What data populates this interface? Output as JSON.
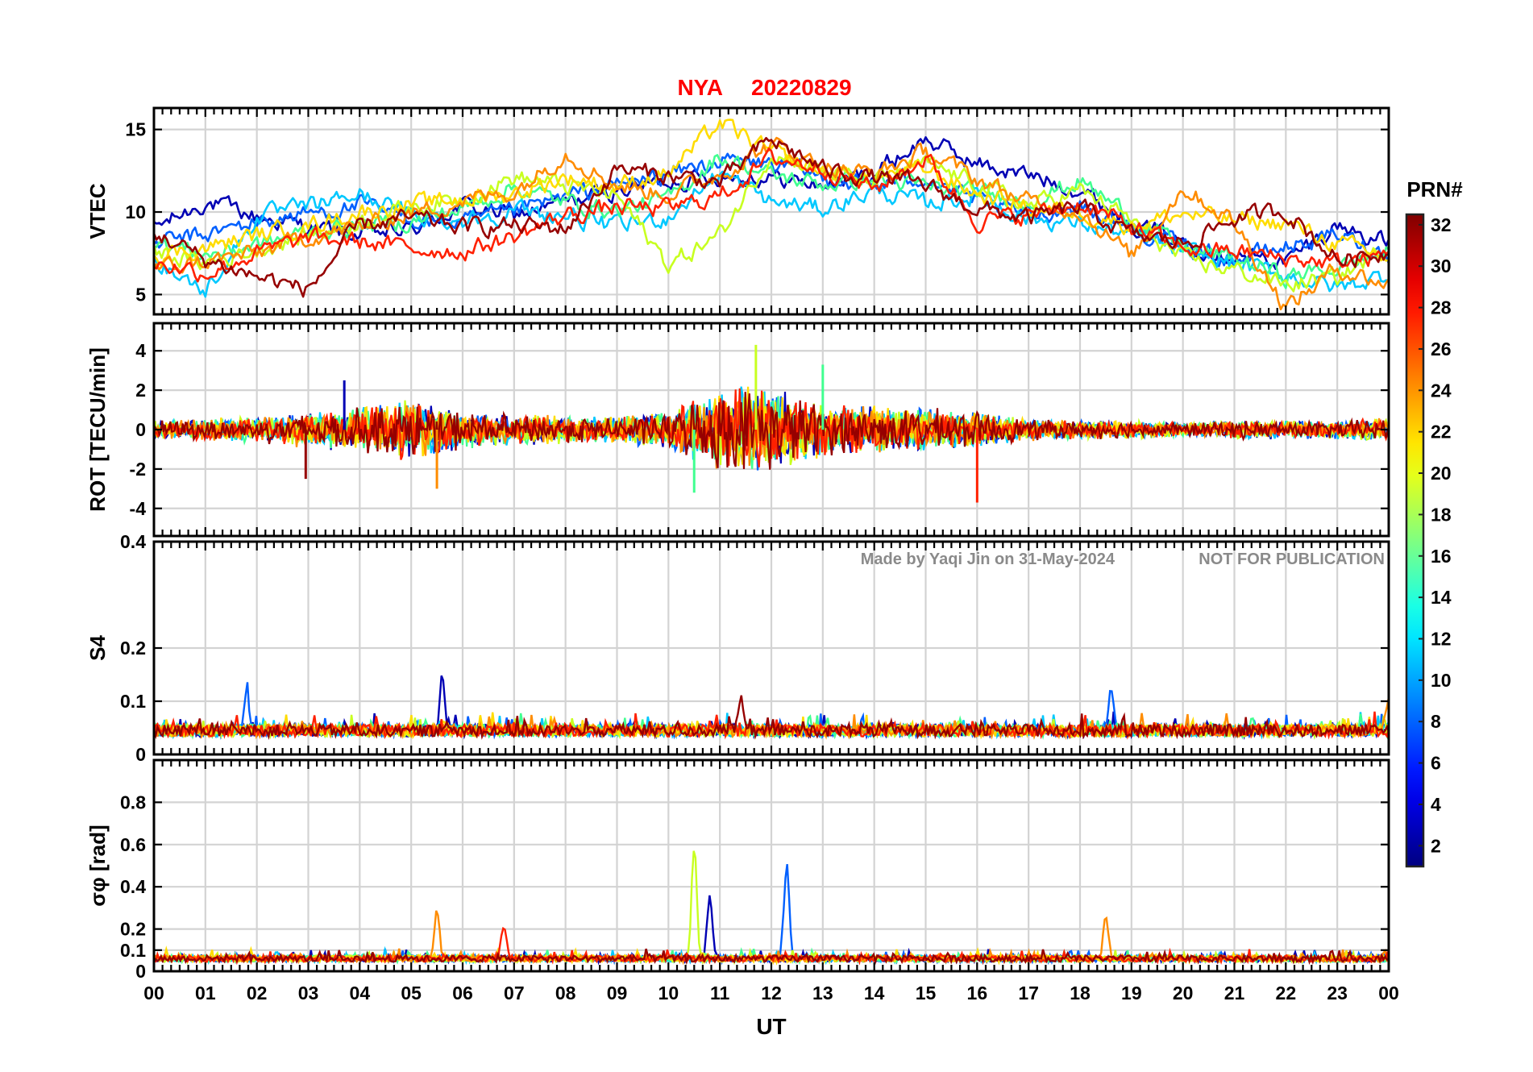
{
  "figure": {
    "station": "NYA",
    "date": "20220829",
    "xlabel": "UT",
    "watermark_left": "Made by Yaqi Jin on 31-May-2024",
    "watermark_right": "NOT FOR PUBLICATION",
    "colorbar_title": "PRN#",
    "colorbar_ticks": [
      "2",
      "4",
      "6",
      "8",
      "10",
      "12",
      "14",
      "16",
      "18",
      "20",
      "22",
      "24",
      "26",
      "28",
      "30",
      "32"
    ],
    "x_ticks": [
      "00",
      "01",
      "02",
      "03",
      "04",
      "05",
      "06",
      "07",
      "08",
      "09",
      "10",
      "11",
      "12",
      "13",
      "14",
      "15",
      "16",
      "17",
      "18",
      "19",
      "20",
      "21",
      "22",
      "23",
      "00"
    ]
  },
  "chart_data": [
    {
      "type": "line",
      "panel": "vtec",
      "ylabel": "VTEC",
      "ylim": [
        3.8,
        16.3
      ],
      "yticks": [
        5,
        10,
        15
      ],
      "yticklabels": [
        "5",
        "10",
        "15"
      ],
      "xlim": [
        0,
        24
      ],
      "series": [
        {
          "name": "PRN 2",
          "prn": 2,
          "color": "#0000b4",
          "x": [
            0,
            1,
            2,
            3,
            4,
            5,
            6,
            7,
            8,
            9,
            10,
            11,
            12,
            13,
            14,
            15,
            16,
            17,
            18,
            19,
            20,
            21,
            22,
            23,
            24
          ],
          "values": [
            9.0,
            10.6,
            9.7,
            9.1,
            8.6,
            8.9,
            10.4,
            9.8,
            10.6,
            11.3,
            11.9,
            12.2,
            12.1,
            11.6,
            12.4,
            14.4,
            12.9,
            12.2,
            11.4,
            9.4,
            8.2,
            7.4,
            7.0,
            9.2,
            8.1
          ]
        },
        {
          "name": "PRN 7",
          "prn": 7,
          "color": "#0060ff",
          "x": [
            0,
            1,
            2,
            3,
            4,
            5,
            6,
            7,
            8,
            9,
            10,
            11,
            12,
            13,
            14,
            15,
            16,
            17,
            18,
            19,
            20,
            21,
            22,
            23,
            24
          ],
          "values": [
            8.1,
            8.6,
            9.4,
            9.9,
            10.4,
            9.6,
            9.3,
            10.0,
            10.9,
            11.6,
            12.3,
            13.1,
            12.9,
            12.1,
            11.6,
            12.2,
            10.6,
            9.8,
            10.4,
            9.0,
            7.9,
            7.1,
            7.9,
            8.6,
            7.4
          ]
        },
        {
          "name": "PRN 12",
          "prn": 12,
          "color": "#00c8ff",
          "x": [
            0,
            1,
            2,
            3,
            4,
            5,
            6,
            7,
            8,
            9,
            10,
            11,
            12,
            13,
            14,
            15,
            16,
            17,
            18,
            19,
            20,
            21,
            22,
            23,
            24
          ],
          "values": [
            7.1,
            5.2,
            9.7,
            10.3,
            11.1,
            9.8,
            9.5,
            10.1,
            9.8,
            9.1,
            9.7,
            12.4,
            10.6,
            10.2,
            11.3,
            10.5,
            11.0,
            9.6,
            9.3,
            8.6,
            7.6,
            6.9,
            6.2,
            5.4,
            6.2
          ]
        },
        {
          "name": "PRN 16",
          "prn": 16,
          "color": "#40ff90",
          "x": [
            0,
            1,
            2,
            3,
            4,
            5,
            6,
            7,
            8,
            9,
            10,
            11,
            12,
            13,
            14,
            15,
            16,
            17,
            18,
            19,
            20,
            21,
            22,
            23,
            24
          ],
          "values": [
            8.3,
            7.4,
            8.0,
            8.8,
            9.2,
            9.4,
            10.2,
            11.5,
            10.6,
            10.1,
            10.8,
            13.4,
            12.2,
            11.7,
            12.0,
            11.5,
            11.2,
            10.6,
            11.9,
            9.7,
            7.8,
            7.2,
            6.1,
            6.6,
            7.6
          ]
        },
        {
          "name": "PRN 19",
          "prn": 19,
          "color": "#c8ff20",
          "x": [
            0,
            1,
            2,
            3,
            4,
            5,
            6,
            7,
            8,
            9,
            10,
            11,
            12,
            13,
            14,
            15,
            16,
            17,
            18,
            19,
            20,
            21,
            22,
            23,
            24
          ],
          "values": [
            7.6,
            6.9,
            7.7,
            8.6,
            9.4,
            10.3,
            10.8,
            12.1,
            11.6,
            11.0,
            6.8,
            8.6,
            13.6,
            12.5,
            11.8,
            12.9,
            11.7,
            10.4,
            11.3,
            9.5,
            7.1,
            6.5,
            5.6,
            6.0,
            7.9
          ]
        },
        {
          "name": "PRN 21",
          "prn": 21,
          "color": "#ffdc00",
          "x": [
            0,
            1,
            2,
            3,
            4,
            5,
            6,
            7,
            8,
            9,
            10,
            11,
            12,
            13,
            14,
            15,
            16,
            17,
            18,
            19,
            20,
            21,
            22,
            23,
            24
          ],
          "values": [
            7.4,
            7.8,
            8.6,
            9.2,
            10.0,
            10.4,
            10.8,
            11.1,
            12.1,
            11.6,
            12.4,
            15.4,
            13.6,
            12.4,
            12.1,
            12.6,
            11.1,
            10.3,
            10.0,
            9.2,
            9.9,
            9.5,
            9.3,
            8.1,
            7.2
          ]
        },
        {
          "name": "PRN 24",
          "prn": 24,
          "color": "#ff8c00",
          "x": [
            0,
            1,
            2,
            3,
            4,
            5,
            6,
            7,
            8,
            9,
            10,
            11,
            12,
            13,
            14,
            15,
            16,
            17,
            18,
            19,
            20,
            21,
            22,
            23,
            24
          ],
          "values": [
            6.5,
            7.0,
            7.5,
            8.5,
            9.1,
            9.9,
            10.7,
            11.2,
            13.6,
            11.6,
            11.1,
            12.3,
            14.1,
            12.8,
            12.3,
            13.6,
            12.0,
            10.6,
            10.1,
            7.3,
            11.5,
            9.4,
            4.2,
            6.6,
            5.6
          ]
        },
        {
          "name": "PRN 27",
          "prn": 27,
          "color": "#ff2000",
          "x": [
            0,
            1,
            2,
            3,
            4,
            5,
            6,
            7,
            8,
            9,
            10,
            11,
            12,
            13,
            14,
            15,
            16,
            17,
            18,
            19,
            20,
            21,
            22,
            23,
            24
          ],
          "values": [
            7.0,
            6.3,
            7.5,
            8.4,
            8.2,
            7.8,
            7.6,
            8.5,
            9.8,
            10.3,
            10.2,
            11.0,
            13.3,
            12.7,
            11.4,
            13.3,
            9.5,
            9.8,
            10.5,
            9.1,
            7.8,
            7.6,
            7.2,
            6.9,
            7.4
          ]
        },
        {
          "name": "PRN 31",
          "prn": 31,
          "color": "#960000",
          "x": [
            0,
            1,
            2,
            3,
            4,
            5,
            6,
            7,
            8,
            9,
            10,
            11,
            12,
            13,
            14,
            15,
            16,
            17,
            18,
            19,
            20,
            21,
            22,
            23,
            24
          ],
          "values": [
            8.8,
            7.1,
            6.1,
            5.3,
            9.2,
            9.6,
            9.1,
            9.2,
            9.0,
            12.6,
            12.2,
            11.8,
            14.4,
            12.6,
            12.1,
            11.6,
            10.2,
            9.6,
            10.3,
            8.6,
            8.1,
            9.6,
            10.1,
            7.1,
            7.6
          ]
        }
      ]
    },
    {
      "type": "line",
      "panel": "rot",
      "ylabel": "ROT [TECU/min]",
      "ylim": [
        -5.4,
        5.4
      ],
      "yticks": [
        -4,
        -2,
        0,
        2,
        4
      ],
      "yticklabels": [
        "-4",
        "-2",
        "0",
        "2",
        "4"
      ],
      "xlim": [
        0,
        24
      ],
      "note": "noise-like fluctuations around 0; envelope amplitude by hour",
      "envelope_x": [
        0,
        1,
        2,
        3,
        4,
        5,
        6,
        7,
        8,
        9,
        10,
        11,
        12,
        13,
        14,
        15,
        16,
        17,
        18,
        19,
        20,
        21,
        22,
        23,
        24
      ],
      "envelope_amplitude": [
        0.5,
        0.6,
        0.7,
        1.0,
        1.3,
        1.6,
        1.1,
        0.8,
        0.8,
        0.7,
        1.0,
        2.4,
        2.3,
        1.5,
        1.3,
        1.2,
        1.0,
        0.6,
        0.5,
        0.5,
        0.4,
        0.5,
        0.5,
        0.5,
        0.7
      ],
      "extreme_spikes": [
        {
          "x": 2.95,
          "value": -2.5,
          "prn": 31
        },
        {
          "x": 3.7,
          "value": 2.5,
          "prn": 2
        },
        {
          "x": 5.5,
          "value": -3.0,
          "prn": 24
        },
        {
          "x": 10.5,
          "value": -3.2,
          "prn": 16
        },
        {
          "x": 11.7,
          "value": 4.3,
          "prn": 19
        },
        {
          "x": 13.0,
          "value": 3.3,
          "prn": 16
        },
        {
          "x": 16.0,
          "value": -3.7,
          "prn": 27
        }
      ]
    },
    {
      "type": "line",
      "panel": "s4",
      "ylabel": "S4",
      "ylim": [
        0,
        0.4
      ],
      "yticks": [
        0,
        0.1,
        0.2,
        0.4
      ],
      "yticklabels": [
        "0",
        "0.1",
        "0.2",
        "0.4"
      ],
      "xlim": [
        0,
        24
      ],
      "note": "background level ~0.04-0.06 for all PRNs",
      "baseline": 0.045,
      "peaks": [
        {
          "x": 1.8,
          "value": 0.12,
          "prn": 7
        },
        {
          "x": 5.6,
          "value": 0.14,
          "prn": 2
        },
        {
          "x": 11.4,
          "value": 0.105,
          "prn": 31
        },
        {
          "x": 18.6,
          "value": 0.115,
          "prn": 7
        },
        {
          "x": 24.0,
          "value": 0.1,
          "prn": 24
        }
      ]
    },
    {
      "type": "line",
      "panel": "sigma_phi",
      "ylabel": "σφ [rad]",
      "ylim": [
        0,
        1.0
      ],
      "yticks": [
        0,
        0.1,
        0.2,
        0.4,
        0.6,
        0.8
      ],
      "yticklabels": [
        "0",
        "0.1",
        "0.2",
        "0.4",
        "0.6",
        "0.8"
      ],
      "xlim": [
        0,
        24
      ],
      "note": "background level ~0.05-0.08 for all PRNs",
      "baseline": 0.06,
      "peaks": [
        {
          "x": 5.5,
          "value": 0.29,
          "prn": 24
        },
        {
          "x": 6.8,
          "value": 0.22,
          "prn": 27
        },
        {
          "x": 10.5,
          "value": 0.59,
          "prn": 19
        },
        {
          "x": 10.8,
          "value": 0.35,
          "prn": 2
        },
        {
          "x": 12.3,
          "value": 0.51,
          "prn": 7
        },
        {
          "x": 18.5,
          "value": 0.25,
          "prn": 24
        }
      ]
    }
  ]
}
